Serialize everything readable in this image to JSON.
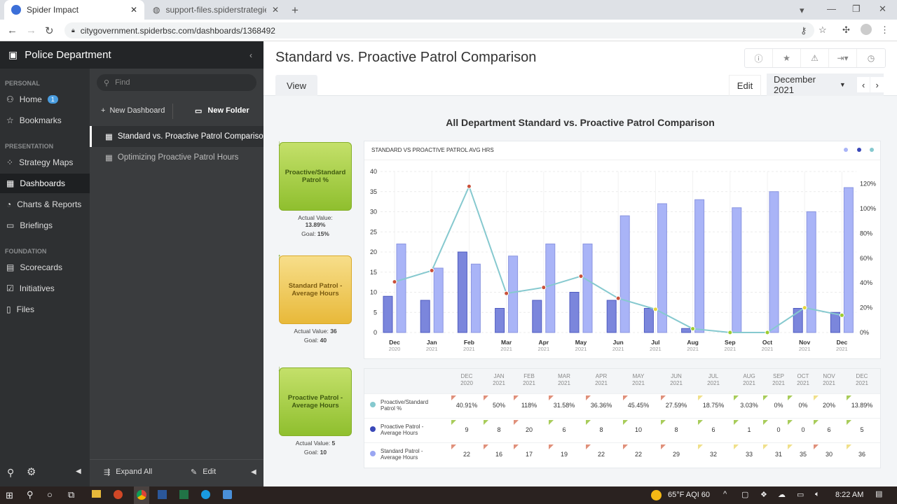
{
  "browser": {
    "tabs": [
      {
        "title": "Spider Impact",
        "active": true
      },
      {
        "title": "support-files.spiderstrategies.com",
        "active": false
      }
    ],
    "url": "citygovernment.spiderbsc.com/dashboards/1368492"
  },
  "sidebar": {
    "title": "Police Department",
    "sections": [
      {
        "label": "PERSONAL"
      },
      {
        "label": "PRESENTATION"
      },
      {
        "label": "FOUNDATION"
      }
    ],
    "items": [
      {
        "label": "Home",
        "badge": "1"
      },
      {
        "label": "Bookmarks"
      },
      {
        "label": "Strategy Maps"
      },
      {
        "label": "Dashboards"
      },
      {
        "label": "Charts & Reports"
      },
      {
        "label": "Briefings"
      },
      {
        "label": "Scorecards"
      },
      {
        "label": "Initiatives"
      },
      {
        "label": "Files"
      }
    ],
    "find_placeholder": "Find",
    "new_dashboard": "New Dashboard",
    "new_folder": "New Folder",
    "dashboards": [
      "Standard vs. Proactive Patrol Comparison",
      "Optimizing Proactive Patrol Hours"
    ],
    "expand_all": "Expand All",
    "edit": "Edit"
  },
  "main": {
    "title": "Standard vs. Proactive Patrol Comparison",
    "tab_view": "View",
    "edit": "Edit",
    "period": "December 2021",
    "dashboard_heading": "All Department Standard vs. Proactive Patrol Comparison"
  },
  "kpis": [
    {
      "name": "Proactive/Standard Patrol %",
      "actual_label": "Actual Value:",
      "actual": "13.89%",
      "goal_label": "Goal:",
      "goal": "15%",
      "status": "green",
      "trend": "down"
    },
    {
      "name": "Standard Patrol - Average Hours",
      "actual_label": "Actual Value:",
      "actual": "36",
      "goal_label": "Goal:",
      "goal": "40",
      "status": "yellow",
      "trend": "up"
    },
    {
      "name": "Proactive Patrol - Average Hours",
      "actual_label": "Actual Value:",
      "actual": "5",
      "goal_label": "Goal:",
      "goal": "10",
      "status": "green",
      "trend": "down"
    }
  ],
  "chart_data": {
    "type": "bar",
    "title": "STANDARD VS PROACTIVE PATROL AVG HRS",
    "categories": [
      [
        "Dec",
        "2020"
      ],
      [
        "Jan",
        "2021"
      ],
      [
        "Feb",
        "2021"
      ],
      [
        "Mar",
        "2021"
      ],
      [
        "Apr",
        "2021"
      ],
      [
        "May",
        "2021"
      ],
      [
        "Jun",
        "2021"
      ],
      [
        "Jul",
        "2021"
      ],
      [
        "Aug",
        "2021"
      ],
      [
        "Sep",
        "2021"
      ],
      [
        "Oct",
        "2021"
      ],
      [
        "Nov",
        "2021"
      ],
      [
        "Dec",
        "2021"
      ]
    ],
    "ylim": [
      0,
      40
    ],
    "yticks": [
      0,
      5,
      10,
      15,
      20,
      25,
      30,
      35,
      40
    ],
    "y2lim": [
      0,
      130
    ],
    "y2ticks": [
      "0%",
      "20%",
      "40%",
      "60%",
      "80%",
      "100%",
      "120%"
    ],
    "grid": true,
    "legend": "top-right",
    "series": [
      {
        "name": "Proactive Patrol - Average Hours",
        "type": "bar",
        "axis": "left",
        "color": "#7b86dc",
        "values": [
          9,
          8,
          20,
          6,
          8,
          10,
          8,
          6,
          1,
          0,
          0,
          6,
          5
        ]
      },
      {
        "name": "Standard Patrol - Average Hours",
        "type": "bar",
        "axis": "left",
        "color": "#a9b4f7",
        "values": [
          22,
          16,
          17,
          19,
          22,
          22,
          29,
          32,
          33,
          31,
          35,
          30,
          36
        ]
      },
      {
        "name": "Proactive/Standard Patrol %",
        "type": "line",
        "axis": "right",
        "color": "#86c9cf",
        "values": [
          40.91,
          50,
          118,
          31.58,
          36.36,
          45.45,
          27.59,
          18.75,
          3.03,
          0,
          0,
          20,
          13.89
        ],
        "point_status": [
          "red",
          "red",
          "red",
          "red",
          "red",
          "red",
          "red",
          "yellow",
          "green",
          "green",
          "green",
          "yellow",
          "green"
        ]
      }
    ]
  },
  "table": {
    "headers": [
      [
        "DEC",
        "2020"
      ],
      [
        "JAN",
        "2021"
      ],
      [
        "FEB",
        "2021"
      ],
      [
        "MAR",
        "2021"
      ],
      [
        "APR",
        "2021"
      ],
      [
        "MAY",
        "2021"
      ],
      [
        "JUN",
        "2021"
      ],
      [
        "JUL",
        "2021"
      ],
      [
        "AUG",
        "2021"
      ],
      [
        "SEP",
        "2021"
      ],
      [
        "OCT",
        "2021"
      ],
      [
        "NOV",
        "2021"
      ],
      [
        "DEC",
        "2021"
      ]
    ],
    "rows": [
      {
        "label": "Proactive/Standard Patrol %",
        "color": "#86c9cf",
        "values": [
          "40.91%",
          "50%",
          "118%",
          "31.58%",
          "36.36%",
          "45.45%",
          "27.59%",
          "18.75%",
          "3.03%",
          "0%",
          "0%",
          "20%",
          "13.89%"
        ],
        "status": [
          "red",
          "red",
          "red",
          "red",
          "red",
          "red",
          "red",
          "yellow",
          "green",
          "green",
          "green",
          "yellow",
          "green"
        ]
      },
      {
        "label": "Proactive Patrol - Average Hours",
        "color": "#3a48b8",
        "values": [
          "9",
          "8",
          "20",
          "6",
          "8",
          "10",
          "8",
          "6",
          "1",
          "0",
          "0",
          "6",
          "5"
        ],
        "status": [
          "green",
          "green",
          "red",
          "green",
          "green",
          "green",
          "green",
          "green",
          "green",
          "green",
          "green",
          "green",
          "green"
        ]
      },
      {
        "label": "Standard Patrol - Average Hours",
        "color": "#9aa6f2",
        "values": [
          "22",
          "16",
          "17",
          "19",
          "22",
          "22",
          "29",
          "32",
          "33",
          "31",
          "35",
          "30",
          "36"
        ],
        "status": [
          "red",
          "red",
          "red",
          "red",
          "red",
          "red",
          "red",
          "yellow",
          "yellow",
          "yellow",
          "yellow",
          "red",
          "yellow"
        ]
      }
    ]
  },
  "status_colors": {
    "red": "#e0907a",
    "yellow": "#f0e08a",
    "green": "#a8cc5a"
  },
  "taskbar": {
    "weather": "65°F  AQI 60",
    "time": "8:22 AM"
  }
}
